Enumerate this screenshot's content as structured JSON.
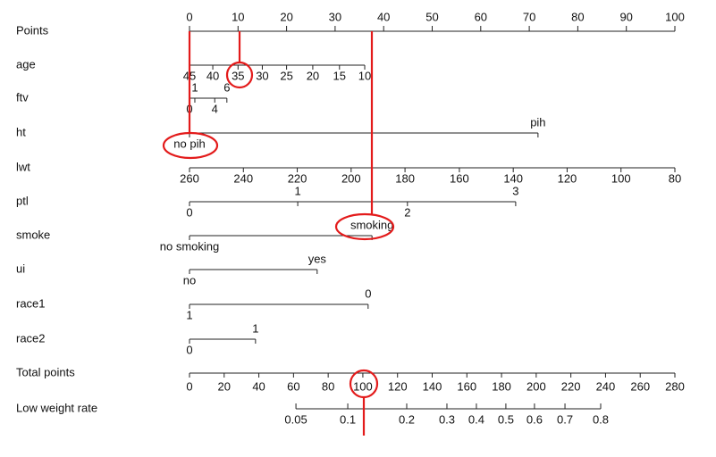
{
  "points_axis": {
    "name": "Points",
    "range": [
      0,
      100
    ],
    "ticks": [
      0,
      10,
      20,
      30,
      40,
      50,
      60,
      70,
      80,
      90,
      100
    ]
  },
  "rows": [
    {
      "name": "age",
      "labels_above": [],
      "labels_below": [
        {
          "label": "45",
          "points": 0
        },
        {
          "label": "40",
          "points": 4.8
        },
        {
          "label": "35",
          "points": 10
        },
        {
          "label": "30",
          "points": 15
        },
        {
          "label": "25",
          "points": 20
        },
        {
          "label": "20",
          "points": 25.4
        },
        {
          "label": "15",
          "points": 30.9
        },
        {
          "label": "10",
          "points": 36.1
        }
      ]
    },
    {
      "name": "ftv",
      "labels_above": [
        {
          "label": "1",
          "points": 1.1
        },
        {
          "label": "6",
          "points": 7.7
        }
      ],
      "labels_below": [
        {
          "label": "0",
          "points": 0
        },
        {
          "label": "4",
          "points": 5.2
        }
      ]
    },
    {
      "name": "ht",
      "labels_above": [
        {
          "label": "pih",
          "points": 71.8
        }
      ],
      "labels_below": [
        {
          "label": "no pih",
          "points": 0
        }
      ]
    },
    {
      "name": "lwt",
      "axis": true,
      "labels_above": [],
      "labels_below": [
        {
          "label": "260",
          "points": 0
        },
        {
          "label": "240",
          "points": 11.1
        },
        {
          "label": "220",
          "points": 22.2
        },
        {
          "label": "200",
          "points": 33.3
        },
        {
          "label": "180",
          "points": 44.4
        },
        {
          "label": "160",
          "points": 55.6
        },
        {
          "label": "140",
          "points": 66.7
        },
        {
          "label": "120",
          "points": 77.8
        },
        {
          "label": "100",
          "points": 88.9
        },
        {
          "label": "80",
          "points": 100
        }
      ]
    },
    {
      "name": "ptl",
      "labels_above": [
        {
          "label": "1",
          "points": 22.3
        },
        {
          "label": "3",
          "points": 67.2
        }
      ],
      "labels_below": [
        {
          "label": "0",
          "points": 0
        },
        {
          "label": "2",
          "points": 44.9
        }
      ]
    },
    {
      "name": "smoke",
      "labels_above": [
        {
          "label": "smoking",
          "points": 37.6
        }
      ],
      "labels_below": [
        {
          "label": "no smoking",
          "points": 0
        }
      ]
    },
    {
      "name": "ui",
      "labels_above": [
        {
          "label": "yes",
          "points": 26.3
        }
      ],
      "labels_below": [
        {
          "label": "no",
          "points": 0
        }
      ]
    },
    {
      "name": "race1",
      "labels_above": [
        {
          "label": "0",
          "points": 36.8
        }
      ],
      "labels_below": [
        {
          "label": "1",
          "points": 0
        }
      ]
    },
    {
      "name": "race2",
      "labels_above": [
        {
          "label": "1",
          "points": 13.6
        }
      ],
      "labels_below": [
        {
          "label": "0",
          "points": 0
        }
      ]
    }
  ],
  "total_axis": {
    "name": "Total points",
    "range": [
      0,
      280
    ],
    "ticks": [
      0,
      20,
      40,
      60,
      80,
      100,
      120,
      140,
      160,
      180,
      200,
      220,
      240,
      260,
      280
    ]
  },
  "risk_axis": {
    "name": "Low weight rate",
    "ticks": [
      {
        "label": "0.05",
        "total_points": 61.4
      },
      {
        "label": "0.1",
        "total_points": 91.3
      },
      {
        "label": "0.2",
        "total_points": 125.3
      },
      {
        "label": "0.3",
        "total_points": 148.5
      },
      {
        "label": "0.4",
        "total_points": 165.5
      },
      {
        "label": "0.5",
        "total_points": 182.5
      },
      {
        "label": "0.6",
        "total_points": 199
      },
      {
        "label": "0.7",
        "total_points": 216.6
      },
      {
        "label": "0.8",
        "total_points": 237.2
      }
    ]
  }
}
